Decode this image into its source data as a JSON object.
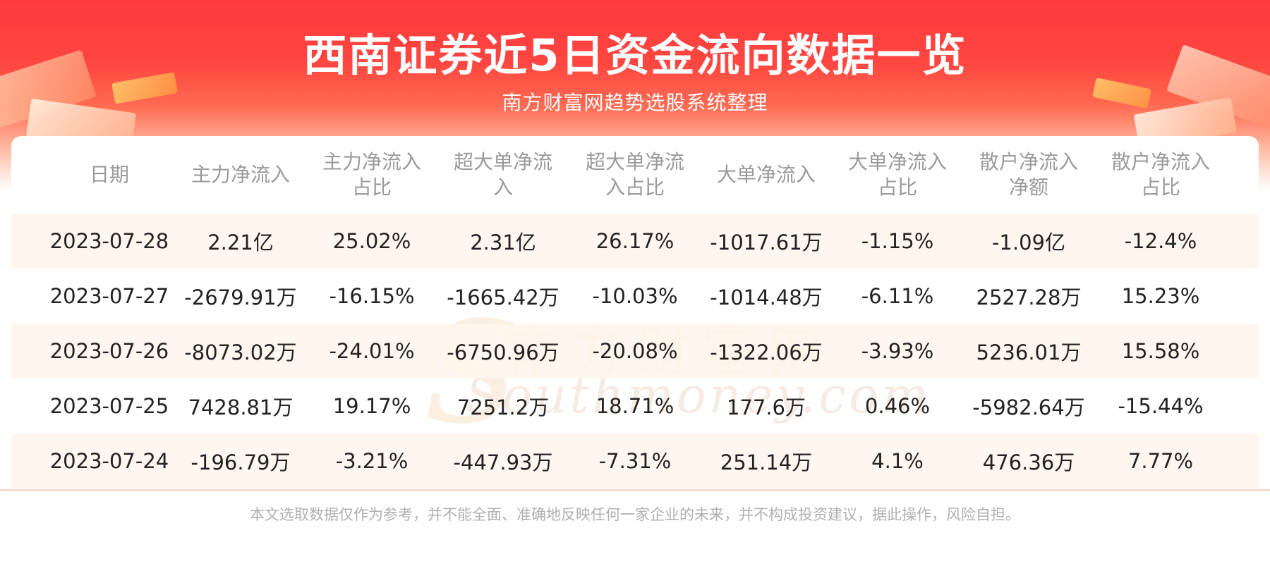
{
  "title": "西南证券近5日资金流向数据一览",
  "subtitle": "南方财富网趋势选股系统整理",
  "watermark": {
    "cn": "南方财富网",
    "en": "Southmoney.com"
  },
  "table": {
    "headers": [
      [
        "日期"
      ],
      [
        "主力净流入"
      ],
      [
        "主力净流入",
        "占比"
      ],
      [
        "超大单净流",
        "入"
      ],
      [
        "超大单净流",
        "入占比"
      ],
      [
        "大单净流入"
      ],
      [
        "大单净流入",
        "占比"
      ],
      [
        "散户净流入",
        "净额"
      ],
      [
        "散户净流入",
        "占比"
      ]
    ],
    "rows": [
      [
        "2023-07-28",
        "2.21亿",
        "25.02%",
        "2.31亿",
        "26.17%",
        "-1017.61万",
        "-1.15%",
        "-1.09亿",
        "-12.4%"
      ],
      [
        "2023-07-27",
        "-2679.91万",
        "-16.15%",
        "-1665.42万",
        "-10.03%",
        "-1014.48万",
        "-6.11%",
        "2527.28万",
        "15.23%"
      ],
      [
        "2023-07-26",
        "-8073.02万",
        "-24.01%",
        "-6750.96万",
        "-20.08%",
        "-1322.06万",
        "-3.93%",
        "5236.01万",
        "15.58%"
      ],
      [
        "2023-07-25",
        "7428.81万",
        "19.17%",
        "7251.2万",
        "18.71%",
        "177.6万",
        "0.46%",
        "-5982.64万",
        "-15.44%"
      ],
      [
        "2023-07-24",
        "-196.79万",
        "-3.21%",
        "-447.93万",
        "-7.31%",
        "251.14万",
        "4.1%",
        "476.36万",
        "7.77%"
      ]
    ]
  },
  "disclaimer": "本文选取数据仅作为参考，并不能全面、准确地反映任何一家企业的未来，并不构成投资建议，据此操作，风险自担。",
  "colors": {
    "banner_red": "#ff3a3e",
    "row_alt": "#fff6ec",
    "header_text": "#9a9a9a",
    "cell_text": "#222222"
  }
}
